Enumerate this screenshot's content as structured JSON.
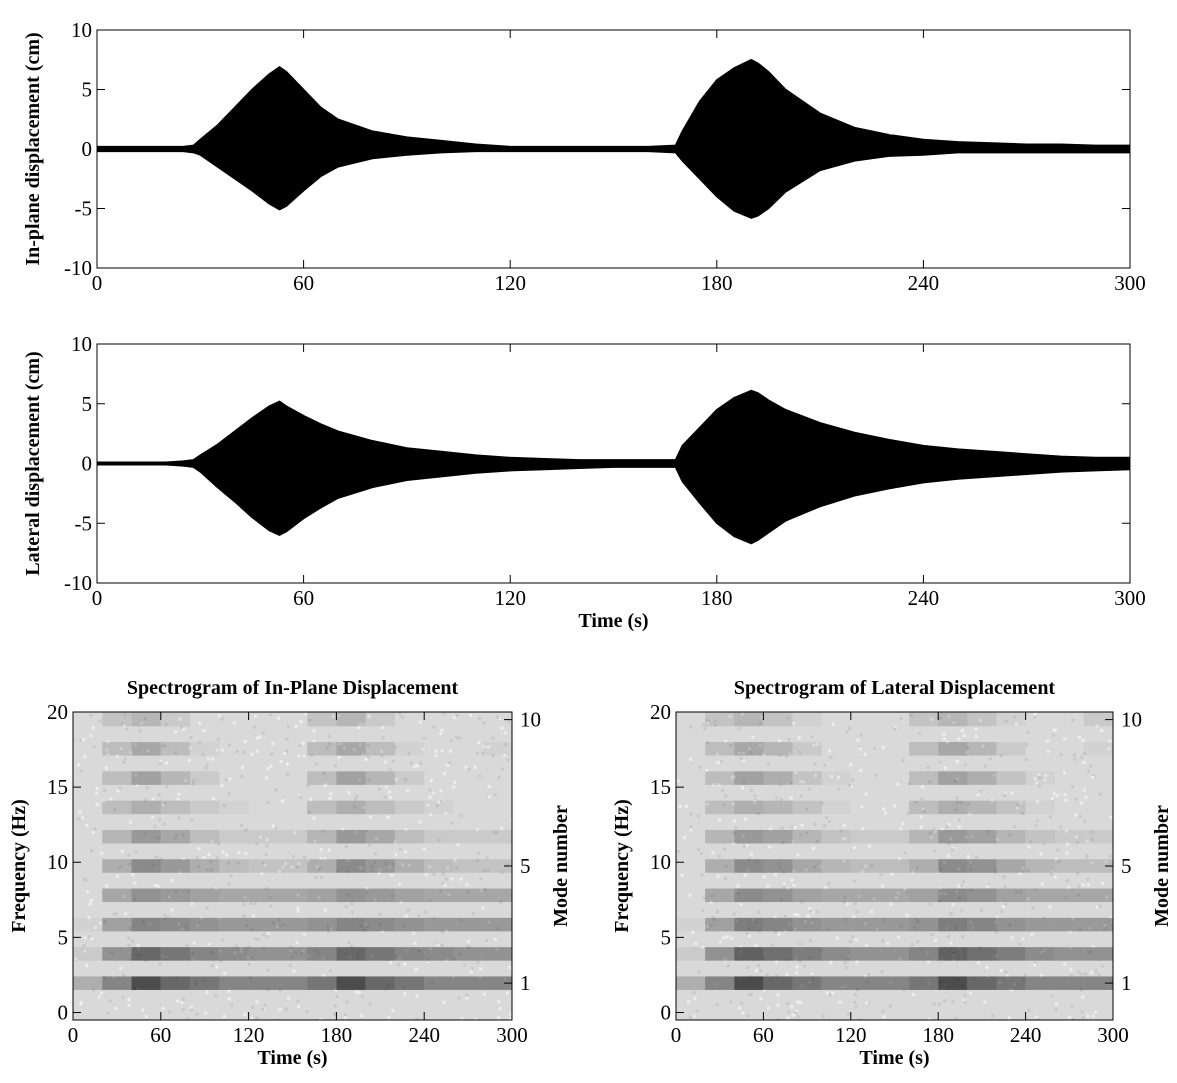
{
  "chart_data": [
    {
      "type": "envelope",
      "ylabel": "In-plane displacement (cm)",
      "color": "#000000",
      "xlim": [
        0,
        300
      ],
      "xticks": [
        0,
        60,
        120,
        180,
        240,
        300
      ],
      "ylim": [
        -10,
        10
      ],
      "yticks": [
        -10,
        -5,
        0,
        5,
        10
      ],
      "x": [
        0,
        10,
        20,
        25,
        28,
        30,
        35,
        40,
        45,
        50,
        53,
        55,
        60,
        65,
        70,
        80,
        90,
        100,
        110,
        120,
        130,
        140,
        150,
        160,
        168,
        170,
        175,
        180,
        185,
        190,
        192,
        195,
        200,
        210,
        220,
        230,
        240,
        250,
        260,
        270,
        280,
        290,
        300
      ],
      "upper": [
        0.2,
        0.2,
        0.2,
        0.2,
        0.3,
        0.8,
        2,
        3.5,
        5,
        6.3,
        6.9,
        6.5,
        5,
        3.5,
        2.5,
        1.5,
        1,
        0.7,
        0.4,
        0.2,
        0.2,
        0.2,
        0.2,
        0.2,
        0.3,
        1.5,
        4,
        5.8,
        6.8,
        7.5,
        7.2,
        6.5,
        5,
        3,
        1.8,
        1.2,
        0.8,
        0.6,
        0.5,
        0.4,
        0.4,
        0.3,
        0.3
      ],
      "lower": [
        -0.2,
        -0.2,
        -0.2,
        -0.2,
        -0.3,
        -0.5,
        -1.5,
        -2.5,
        -3.5,
        -4.6,
        -5.1,
        -4.8,
        -3.5,
        -2.3,
        -1.5,
        -0.8,
        -0.5,
        -0.3,
        -0.2,
        -0.2,
        -0.2,
        -0.2,
        -0.2,
        -0.2,
        -0.3,
        -1,
        -2.5,
        -4,
        -5.2,
        -5.8,
        -5.6,
        -5,
        -3.6,
        -1.8,
        -1,
        -0.6,
        -0.5,
        -0.3,
        -0.3,
        -0.3,
        -0.3,
        -0.3,
        -0.3
      ]
    },
    {
      "type": "envelope",
      "ylabel": "Lateral displacement (cm)",
      "xlabel": "Time (s)",
      "color": "#000000",
      "xlim": [
        0,
        300
      ],
      "xticks": [
        0,
        60,
        120,
        180,
        240,
        300
      ],
      "ylim": [
        -10,
        10
      ],
      "yticks": [
        -10,
        -5,
        0,
        5,
        10
      ],
      "x": [
        0,
        10,
        20,
        25,
        28,
        30,
        35,
        40,
        45,
        50,
        53,
        55,
        60,
        65,
        70,
        80,
        90,
        100,
        110,
        120,
        130,
        140,
        150,
        160,
        168,
        170,
        175,
        180,
        185,
        190,
        192,
        195,
        200,
        210,
        220,
        230,
        240,
        250,
        260,
        270,
        280,
        290,
        300
      ],
      "upper": [
        0.1,
        0.1,
        0.1,
        0.2,
        0.3,
        0.7,
        1.6,
        2.7,
        3.8,
        4.8,
        5.2,
        4.8,
        4,
        3.3,
        2.7,
        1.9,
        1.3,
        1,
        0.7,
        0.5,
        0.4,
        0.3,
        0.3,
        0.3,
        0.3,
        1.5,
        3,
        4.5,
        5.5,
        6.1,
        5.9,
        5.3,
        4.5,
        3.4,
        2.6,
        2,
        1.5,
        1.2,
        1,
        0.8,
        0.6,
        0.5,
        0.5
      ],
      "lower": [
        -0.1,
        -0.1,
        -0.1,
        -0.2,
        -0.3,
        -0.7,
        -2,
        -3.2,
        -4.5,
        -5.6,
        -6,
        -5.7,
        -4.6,
        -3.7,
        -2.9,
        -2,
        -1.4,
        -1.1,
        -0.8,
        -0.6,
        -0.5,
        -0.4,
        -0.3,
        -0.3,
        -0.3,
        -1.5,
        -3.3,
        -5,
        -6.1,
        -6.7,
        -6.4,
        -5.8,
        -4.8,
        -3.6,
        -2.7,
        -2.1,
        -1.6,
        -1.3,
        -1.1,
        -0.9,
        -0.7,
        -0.6,
        -0.5
      ]
    },
    {
      "type": "spectrogram",
      "title": "Spectrogram of In-Plane Displacement",
      "xlabel": "Time (s)",
      "ylabel": "Frequency (Hz)",
      "y2label": "Mode number",
      "xlim": [
        0,
        300
      ],
      "xticks": [
        0,
        60,
        120,
        180,
        240,
        300
      ],
      "ylim": [
        -0.5,
        20
      ],
      "yticks": [
        0,
        5,
        10,
        15,
        20
      ],
      "y2lim": [
        -0.26,
        10.26
      ],
      "y2ticks": [
        1,
        5,
        10
      ],
      "time_bins": [
        0,
        20,
        40,
        60,
        80,
        100,
        120,
        140,
        160,
        180,
        200,
        220,
        240,
        260,
        280,
        300
      ],
      "mode_freqs": [
        1.95,
        3.9,
        5.85,
        7.8,
        9.75,
        11.7,
        13.65,
        15.6,
        17.55,
        19.5
      ],
      "values": [
        [
          0.3,
          0.6,
          1.0,
          0.8,
          0.7,
          0.6,
          0.6,
          0.6,
          0.7,
          1.0,
          0.8,
          0.7,
          0.6,
          0.6,
          0.6
        ],
        [
          0.1,
          0.5,
          0.8,
          0.7,
          0.6,
          0.55,
          0.5,
          0.5,
          0.6,
          0.8,
          0.7,
          0.6,
          0.55,
          0.5,
          0.5
        ],
        [
          0.05,
          0.4,
          0.6,
          0.55,
          0.5,
          0.45,
          0.45,
          0.45,
          0.5,
          0.6,
          0.55,
          0.5,
          0.45,
          0.45,
          0.45
        ],
        [
          0,
          0.35,
          0.5,
          0.45,
          0.4,
          0.35,
          0.35,
          0.35,
          0.4,
          0.5,
          0.45,
          0.4,
          0.35,
          0.35,
          0.35
        ],
        [
          0,
          0.3,
          0.55,
          0.45,
          0.3,
          0.2,
          0.15,
          0.15,
          0.3,
          0.55,
          0.45,
          0.3,
          0.2,
          0.15,
          0.15
        ],
        [
          0,
          0.25,
          0.45,
          0.35,
          0.2,
          0.1,
          0.1,
          0.1,
          0.25,
          0.45,
          0.35,
          0.2,
          0.1,
          0.1,
          0.1
        ],
        [
          0,
          0.2,
          0.3,
          0.2,
          0.1,
          0.05,
          0,
          0,
          0.2,
          0.3,
          0.2,
          0.1,
          0.05,
          0,
          0
        ],
        [
          0,
          0.2,
          0.4,
          0.25,
          0.1,
          0,
          0,
          0,
          0.2,
          0.4,
          0.25,
          0.1,
          0,
          0,
          0
        ],
        [
          0,
          0.2,
          0.35,
          0.2,
          0.05,
          0,
          0,
          0,
          0.2,
          0.35,
          0.2,
          0.05,
          0,
          0,
          0.05
        ],
        [
          0,
          0.15,
          0.25,
          0.1,
          0,
          0,
          0,
          0,
          0.15,
          0.25,
          0.1,
          0,
          0,
          0,
          0
        ]
      ]
    },
    {
      "type": "spectrogram",
      "title": "Spectrogram of Lateral Displacement",
      "xlabel": "Time (s)",
      "ylabel": "Frequency (Hz)",
      "y2label": "Mode number",
      "xlim": [
        0,
        300
      ],
      "xticks": [
        0,
        60,
        120,
        180,
        240,
        300
      ],
      "ylim": [
        -0.5,
        20
      ],
      "yticks": [
        0,
        5,
        10,
        15,
        20
      ],
      "y2lim": [
        -0.26,
        10.26
      ],
      "y2ticks": [
        1,
        5,
        10
      ],
      "time_bins": [
        0,
        20,
        40,
        60,
        80,
        100,
        120,
        140,
        160,
        180,
        200,
        220,
        240,
        260,
        280,
        300
      ],
      "mode_freqs": [
        1.95,
        3.9,
        5.85,
        7.8,
        9.75,
        11.7,
        13.65,
        15.6,
        17.55,
        19.5
      ],
      "values": [
        [
          0.3,
          0.6,
          1.0,
          0.8,
          0.7,
          0.6,
          0.6,
          0.6,
          0.7,
          1.0,
          0.8,
          0.7,
          0.6,
          0.6,
          0.6
        ],
        [
          0.1,
          0.5,
          0.85,
          0.75,
          0.65,
          0.55,
          0.5,
          0.5,
          0.6,
          0.85,
          0.75,
          0.65,
          0.55,
          0.5,
          0.5
        ],
        [
          0.05,
          0.4,
          0.65,
          0.6,
          0.5,
          0.45,
          0.45,
          0.45,
          0.5,
          0.65,
          0.6,
          0.5,
          0.45,
          0.45,
          0.45
        ],
        [
          0,
          0.35,
          0.55,
          0.5,
          0.4,
          0.35,
          0.35,
          0.35,
          0.4,
          0.55,
          0.5,
          0.4,
          0.35,
          0.35,
          0.35
        ],
        [
          0,
          0.3,
          0.55,
          0.5,
          0.35,
          0.25,
          0.2,
          0.2,
          0.3,
          0.55,
          0.5,
          0.35,
          0.25,
          0.2,
          0.2
        ],
        [
          0,
          0.25,
          0.45,
          0.4,
          0.25,
          0.15,
          0.1,
          0.1,
          0.25,
          0.45,
          0.4,
          0.25,
          0.15,
          0.1,
          0.1
        ],
        [
          0,
          0.2,
          0.3,
          0.25,
          0.15,
          0.05,
          0,
          0,
          0.2,
          0.3,
          0.25,
          0.15,
          0.05,
          0,
          0
        ],
        [
          0,
          0.2,
          0.4,
          0.3,
          0.15,
          0.05,
          0,
          0,
          0.2,
          0.4,
          0.3,
          0.15,
          0.05,
          0,
          0
        ],
        [
          0,
          0.2,
          0.35,
          0.25,
          0.1,
          0,
          0,
          0,
          0.2,
          0.35,
          0.25,
          0.1,
          0,
          0,
          0.05
        ],
        [
          0,
          0.15,
          0.25,
          0.15,
          0.05,
          0,
          0,
          0,
          0.15,
          0.25,
          0.15,
          0.05,
          0,
          0,
          0.1
        ]
      ]
    }
  ]
}
